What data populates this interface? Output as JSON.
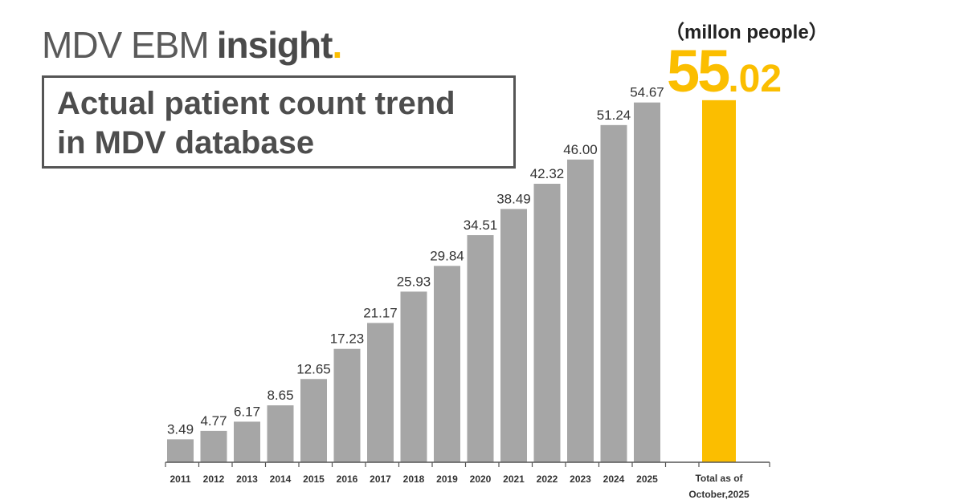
{
  "brand": {
    "part1": "MDV EBM",
    "part2": "insight",
    "dot": "."
  },
  "title": {
    "line1": "Actual patient count trend",
    "line2": "in MDV database"
  },
  "unit_label": "（millon people）",
  "total": {
    "integer": "55",
    "decimal": ".02"
  },
  "colors": {
    "bar": "#a6a6a6",
    "highlight": "#fbbe00",
    "axis": "#555555"
  },
  "chart_data": {
    "type": "bar",
    "title": "Actual patient count trend in MDV database",
    "ylabel": "millon people",
    "xlabel": "",
    "ylim": [
      0,
      60
    ],
    "grid": false,
    "categories": [
      "2011",
      "2012",
      "2013",
      "2014",
      "2015",
      "2016",
      "2017",
      "2018",
      "2019",
      "2020",
      "2021",
      "2022",
      "2023",
      "2024",
      "2025"
    ],
    "values": [
      3.49,
      4.77,
      6.17,
      8.65,
      12.65,
      17.23,
      21.17,
      25.93,
      29.84,
      34.51,
      38.49,
      42.32,
      46.0,
      51.24,
      54.67
    ],
    "value_labels": [
      "3.49",
      "4.77",
      "6.17",
      "8.65",
      "12.65",
      "17.23",
      "21.17",
      "25.93",
      "29.84",
      "34.51",
      "38.49",
      "42.32",
      "46.00",
      "51.24",
      "54.67"
    ],
    "highlight": {
      "label_line1": "Total as of",
      "label_line2": "October,2025",
      "value": 55.02
    }
  }
}
